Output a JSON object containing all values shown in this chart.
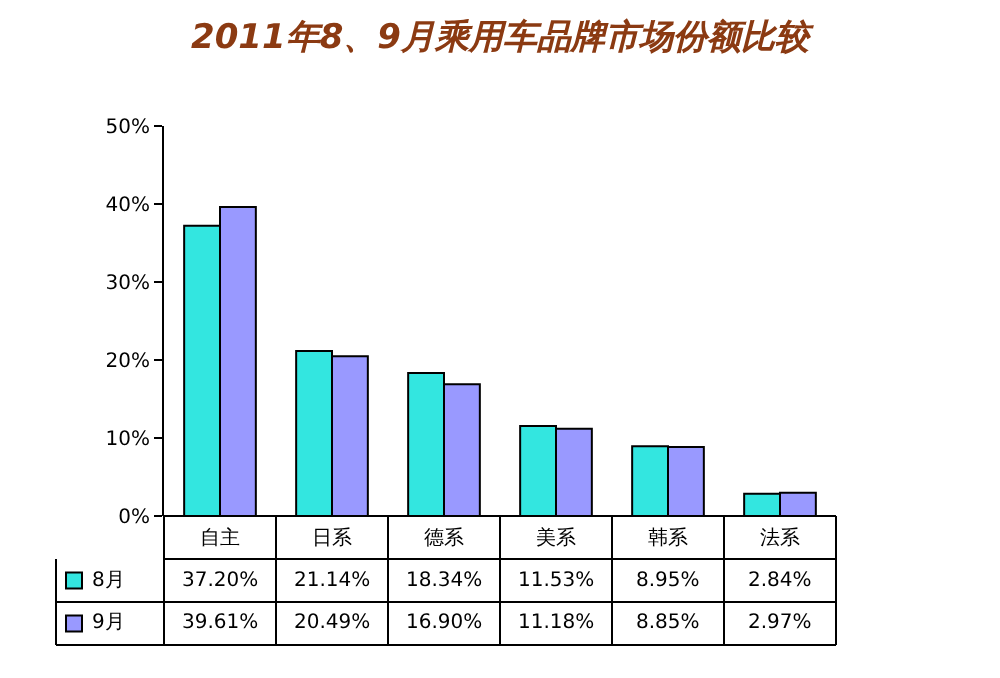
{
  "chart_data": {
    "type": "bar",
    "title": "2011年8、9月乘用车品牌市场份额比较",
    "categories": [
      "自主",
      "日系",
      "德系",
      "美系",
      "韩系",
      "法系"
    ],
    "series": [
      {
        "name": "8月",
        "color": "#33e6e0",
        "values": [
          37.2,
          21.14,
          18.34,
          11.53,
          8.95,
          2.84
        ],
        "value_labels": [
          "37.20%",
          "21.14%",
          "18.34%",
          "11.53%",
          "8.95%",
          "2.84%"
        ]
      },
      {
        "name": "9月",
        "color": "#9999ff",
        "values": [
          39.61,
          20.49,
          16.9,
          11.18,
          8.85,
          2.97
        ],
        "value_labels": [
          "39.61%",
          "20.49%",
          "16.90%",
          "11.18%",
          "8.85%",
          "2.97%"
        ]
      }
    ],
    "legend": "bottom left",
    "ylim": [
      0,
      50
    ],
    "yticks": [
      {
        "value": 0,
        "label": "0%"
      },
      {
        "value": 10,
        "label": "10%"
      },
      {
        "value": 20,
        "label": "20%"
      },
      {
        "value": 30,
        "label": "30%"
      },
      {
        "value": 40,
        "label": "40%"
      },
      {
        "value": 50,
        "label": "50%"
      }
    ]
  }
}
